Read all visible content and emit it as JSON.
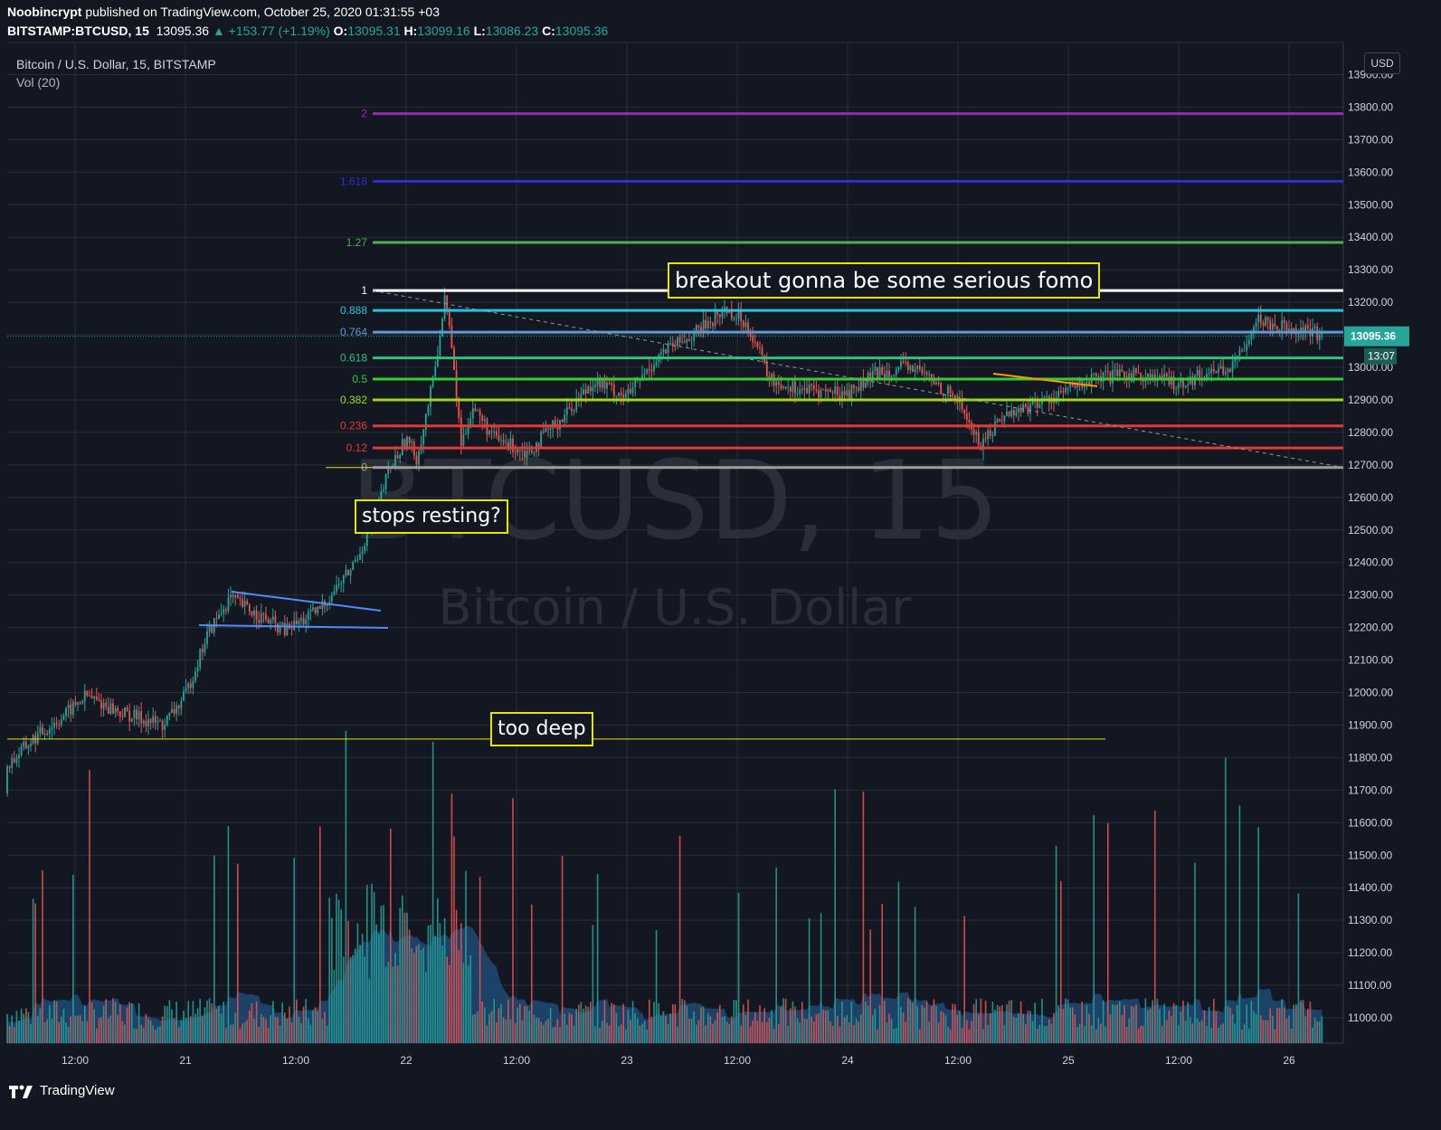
{
  "header": {
    "author": "Noobincrypt",
    "published_text": "published on TradingView.com, October 25, 2020 01:31:55 +03",
    "symbol_interval": "BITSTAMP:BTCUSD, 15",
    "last": "13095.36",
    "change": "▲ +153.77 (+1.19%)",
    "o_label": "O:",
    "o": "13095.31",
    "h_label": "H:",
    "h": "13099.16",
    "l_label": "L:",
    "l": "13086.23",
    "c_label": "C:",
    "c": "13095.36"
  },
  "legend": {
    "title": "Bitcoin / U.S. Dollar, 15, BITSTAMP",
    "volume": "Vol (20)"
  },
  "currency_button": "USD",
  "watermark": {
    "symbol": "BTCUSD, 15",
    "name": "Bitcoin / U.S. Dollar"
  },
  "notes": {
    "breakout": "breakout gonna be some serious fomo",
    "stops": "stops resting?",
    "deep": "too deep"
  },
  "footer": {
    "brand": "TradingView"
  },
  "colors": {
    "background": "#131722",
    "grid": "#2a2e39",
    "up": "#26a69a",
    "down": "#ef5350",
    "note_border": "#e6e600"
  },
  "chart_data": {
    "type": "candlestick",
    "symbol": "BITSTAMP:BTCUSD",
    "interval": "15",
    "ylim": [
      10930,
      13970
    ],
    "y_ticks": [
      11000,
      11100,
      11200,
      11300,
      11400,
      11500,
      11600,
      11700,
      11800,
      11900,
      12000,
      12100,
      12200,
      12300,
      12400,
      12500,
      12600,
      12700,
      12800,
      12900,
      13000,
      13100,
      13200,
      13300,
      13400,
      13500,
      13600,
      13700,
      13800,
      13900
    ],
    "x_ticks": [
      "12:00",
      "21",
      "12:00",
      "22",
      "12:00",
      "23",
      "12:00",
      "24",
      "12:00",
      "25",
      "12:00",
      "26"
    ],
    "last_price": "13095.36",
    "countdown": "13:07",
    "fib_levels": [
      {
        "level": "2",
        "price": 13780,
        "color": "#9c27b0"
      },
      {
        "level": "1.618",
        "price": 13572,
        "color": "#3030c8"
      },
      {
        "level": "1.27",
        "price": 13384,
        "color": "#4caf50"
      },
      {
        "level": "1",
        "price": 13236,
        "color": "#ffffff"
      },
      {
        "level": "0.888",
        "price": 13175,
        "color": "#26c6da"
      },
      {
        "level": "0.764",
        "price": 13108,
        "color": "#5b9bd5"
      },
      {
        "level": "0.618",
        "price": 13029,
        "color": "#2ec27e"
      },
      {
        "level": "0.5",
        "price": 12964,
        "color": "#33cc33"
      },
      {
        "level": "0.382",
        "price": 12900,
        "color": "#a0d911"
      },
      {
        "level": "0.236",
        "price": 12820,
        "color": "#e53935"
      },
      {
        "level": "0.12",
        "price": 12752,
        "color": "#e53935"
      },
      {
        "level": "0",
        "price": 12692,
        "color": "#9e9e9e"
      }
    ],
    "horizontal_lines": [
      {
        "price": 11857,
        "color": "#e6e600"
      }
    ],
    "price_path": [
      [
        0,
        11690
      ],
      [
        0.2,
        11780
      ],
      [
        0.3,
        11850
      ],
      [
        0.45,
        11930
      ],
      [
        0.55,
        11990
      ],
      [
        0.7,
        11940
      ],
      [
        0.9,
        11900
      ],
      [
        1.0,
        11990
      ],
      [
        1.1,
        12180
      ],
      [
        1.2,
        12290
      ],
      [
        1.3,
        12250
      ],
      [
        1.45,
        12190
      ],
      [
        1.6,
        12250
      ],
      [
        1.75,
        12380
      ],
      [
        1.85,
        12520
      ],
      [
        1.92,
        12680
      ],
      [
        2.0,
        12780
      ],
      [
        2.05,
        12720
      ],
      [
        2.12,
        12950
      ],
      [
        2.18,
        13230
      ],
      [
        2.25,
        12760
      ],
      [
        2.3,
        12880
      ],
      [
        2.4,
        12780
      ],
      [
        2.55,
        12740
      ],
      [
        2.7,
        12840
      ],
      [
        2.85,
        12960
      ],
      [
        3.0,
        12910
      ],
      [
        3.15,
        13040
      ],
      [
        3.3,
        13100
      ],
      [
        3.45,
        13180
      ],
      [
        3.55,
        13130
      ],
      [
        3.65,
        12960
      ],
      [
        3.8,
        12930
      ],
      [
        4.0,
        12920
      ],
      [
        4.15,
        12990
      ],
      [
        4.3,
        13000
      ],
      [
        4.5,
        12900
      ],
      [
        4.6,
        12760
      ],
      [
        4.7,
        12850
      ],
      [
        4.9,
        12900
      ],
      [
        5.1,
        12960
      ],
      [
        5.3,
        12980
      ],
      [
        5.5,
        12950
      ],
      [
        5.65,
        12990
      ],
      [
        5.75,
        13000
      ],
      [
        5.85,
        13150
      ],
      [
        5.95,
        13130
      ],
      [
        6.05,
        13120
      ],
      [
        6.15,
        13095
      ]
    ],
    "volume_range": [
      0,
      3000
    ]
  }
}
